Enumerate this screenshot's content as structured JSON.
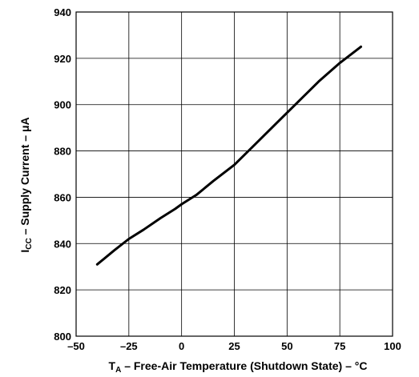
{
  "chart_data": {
    "type": "line",
    "xlabel_main": "T",
    "xlabel_sub": "A",
    "xlabel_rest": " – Free-Air Temperature (Shutdown State) – °C",
    "ylabel_main": "I",
    "ylabel_sub": "CC",
    "ylabel_rest": " – Supply Current – μA",
    "xlim": [
      -50,
      100
    ],
    "ylim": [
      800,
      940
    ],
    "x_ticks": [
      "–50",
      "–25",
      "0",
      "25",
      "50",
      "75",
      "100"
    ],
    "y_ticks": [
      "800",
      "820",
      "840",
      "860",
      "880",
      "900",
      "920",
      "940"
    ],
    "grid": true,
    "series": [
      {
        "x": [
          -40,
          -32,
          -25,
          -18,
          -10,
          -3,
          0,
          7,
          15,
          25,
          35,
          45,
          55,
          65,
          75,
          85
        ],
        "y": [
          831,
          837,
          842,
          846,
          851,
          855,
          857,
          861,
          867,
          874,
          883,
          892,
          901,
          910,
          918,
          925
        ]
      }
    ]
  }
}
